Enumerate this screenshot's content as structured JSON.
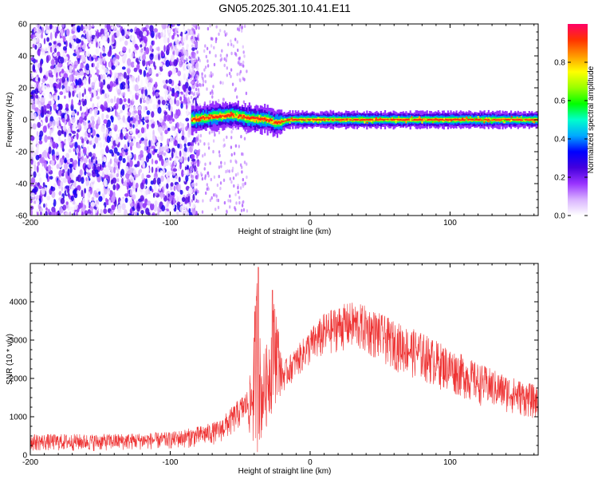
{
  "figure": {
    "title": "GN05.2025.301.10.41.E11"
  },
  "colors": {
    "snr_line": "#ee3333",
    "frame": "#000000",
    "background": "#ffffff"
  },
  "chart_data": [
    {
      "type": "heatmap",
      "xlabel": "Height of straight line (km)",
      "ylabel": "Frequency (Hz)",
      "xlim": [
        -200,
        163
      ],
      "ylim": [
        -60,
        60
      ],
      "xticks": [
        -200,
        -100,
        0,
        100
      ],
      "yticks": [
        -60,
        -40,
        -20,
        0,
        20,
        40,
        60
      ],
      "colorbar": {
        "label": "Normalized spectral amplitude",
        "range": [
          0.0,
          1.0
        ],
        "ticks": [
          0.0,
          0.2,
          0.4,
          0.6,
          0.8
        ],
        "colormap": [
          "#ffffff",
          "#d9b3ff",
          "#9933ff",
          "#4400dd",
          "#0000ff",
          "#00aaff",
          "#00ffcc",
          "#00ff00",
          "#99ff00",
          "#ffff00",
          "#ff9900",
          "#ff3300",
          "#ff0066"
        ]
      },
      "features": {
        "noise_region_x": [
          -200,
          -85
        ],
        "signal_start_x": -85,
        "signal_center_freq": 0,
        "signal_wander": [
          {
            "x": -85,
            "f": 0
          },
          {
            "x": -70,
            "f": 2
          },
          {
            "x": -55,
            "f": 3
          },
          {
            "x": -45,
            "f": 1
          },
          {
            "x": -30,
            "f": 0
          },
          {
            "x": -25,
            "f": -2
          },
          {
            "x": -15,
            "f": 0
          },
          {
            "x": 163,
            "f": 0
          }
        ]
      }
    },
    {
      "type": "line",
      "xlabel": "Height of straight line (km)",
      "ylabel": "SNR (10 * v/v)",
      "xlim": [
        -200,
        163
      ],
      "ylim": [
        0,
        5000
      ],
      "xticks": [
        -200,
        -100,
        0,
        100
      ],
      "yticks": [
        0,
        1000,
        2000,
        3000,
        4000
      ],
      "envelope": {
        "x": [
          -200,
          -150,
          -100,
          -80,
          -65,
          -55,
          -45,
          -42,
          -38,
          -35,
          -30,
          -25,
          -20,
          -10,
          0,
          10,
          20,
          30,
          40,
          50,
          60,
          80,
          100,
          120,
          140,
          163
        ],
        "low": [
          100,
          100,
          150,
          200,
          300,
          500,
          900,
          100,
          0,
          300,
          800,
          1300,
          1600,
          2000,
          2300,
          2500,
          2700,
          2700,
          2600,
          2400,
          2200,
          1900,
          1600,
          1300,
          1100,
          900
        ],
        "high": [
          550,
          550,
          600,
          750,
          900,
          1300,
          1700,
          2300,
          4900,
          2500,
          3000,
          4300,
          2400,
          2800,
          3300,
          3700,
          3900,
          4000,
          3900,
          3700,
          3500,
          3200,
          2800,
          2400,
          2100,
          1800
        ]
      },
      "peaks": [
        {
          "x": -37,
          "y": 4900
        },
        {
          "x": -27,
          "y": 4300
        }
      ]
    }
  ]
}
